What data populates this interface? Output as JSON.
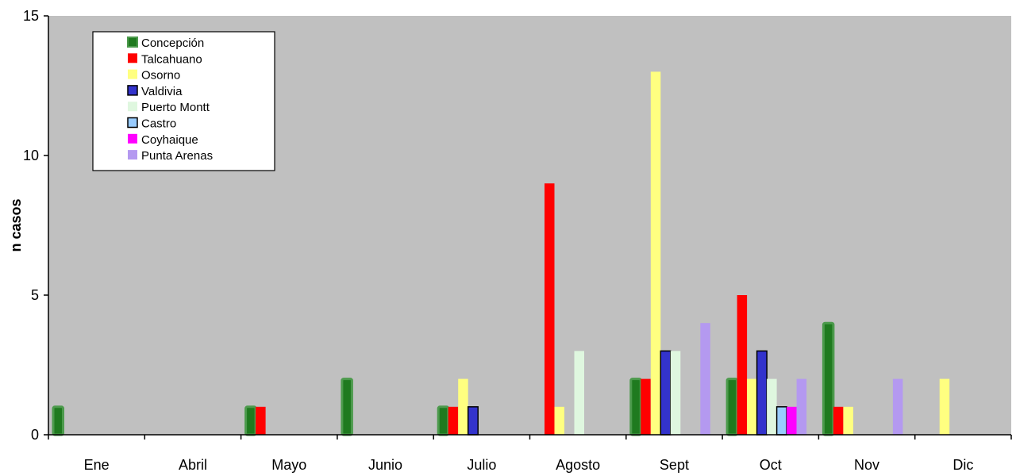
{
  "chart_data": {
    "type": "bar",
    "ylabel": "n casos",
    "xlabel": "",
    "ylim": [
      0,
      15
    ],
    "yticks": [
      0,
      5,
      10,
      15
    ],
    "grid": false,
    "legend_position": "top-left",
    "background_color": "#c0c0c0",
    "categories": [
      "Ene",
      "Abril",
      "Mayo",
      "Junio",
      "Julio",
      "Agosto",
      "Sept",
      "Oct",
      "Nov",
      "Dic"
    ],
    "series": [
      {
        "name": "Concepción",
        "color": "#1f7a1f",
        "values": [
          1,
          0,
          1,
          2,
          1,
          0,
          2,
          2,
          4,
          0
        ]
      },
      {
        "name": "Talcahuano",
        "color": "#ff0000",
        "values": [
          0,
          0,
          1,
          0,
          1,
          9,
          2,
          5,
          1,
          0
        ]
      },
      {
        "name": "Osorno",
        "color": "#ffff80",
        "values": [
          0,
          0,
          0,
          0,
          2,
          1,
          13,
          2,
          1,
          2
        ]
      },
      {
        "name": "Valdivia",
        "color": "#3333cc",
        "values": [
          0,
          0,
          0,
          0,
          1,
          0,
          3,
          3,
          0,
          0
        ]
      },
      {
        "name": "Puerto Montt",
        "color": "#dff7df",
        "values": [
          0,
          0,
          0,
          0,
          0,
          3,
          3,
          2,
          0,
          0
        ]
      },
      {
        "name": "Castro",
        "color": "#99ccff",
        "values": [
          0,
          0,
          0,
          0,
          0,
          0,
          0,
          1,
          0,
          0
        ]
      },
      {
        "name": "Coyhaique",
        "color": "#ff00ff",
        "values": [
          0,
          0,
          0,
          0,
          0,
          0,
          0,
          1,
          0,
          0
        ]
      },
      {
        "name": "Punta Arenas",
        "color": "#b499f0",
        "values": [
          0,
          0,
          0,
          0,
          0,
          0,
          4,
          2,
          2,
          0
        ]
      }
    ]
  }
}
